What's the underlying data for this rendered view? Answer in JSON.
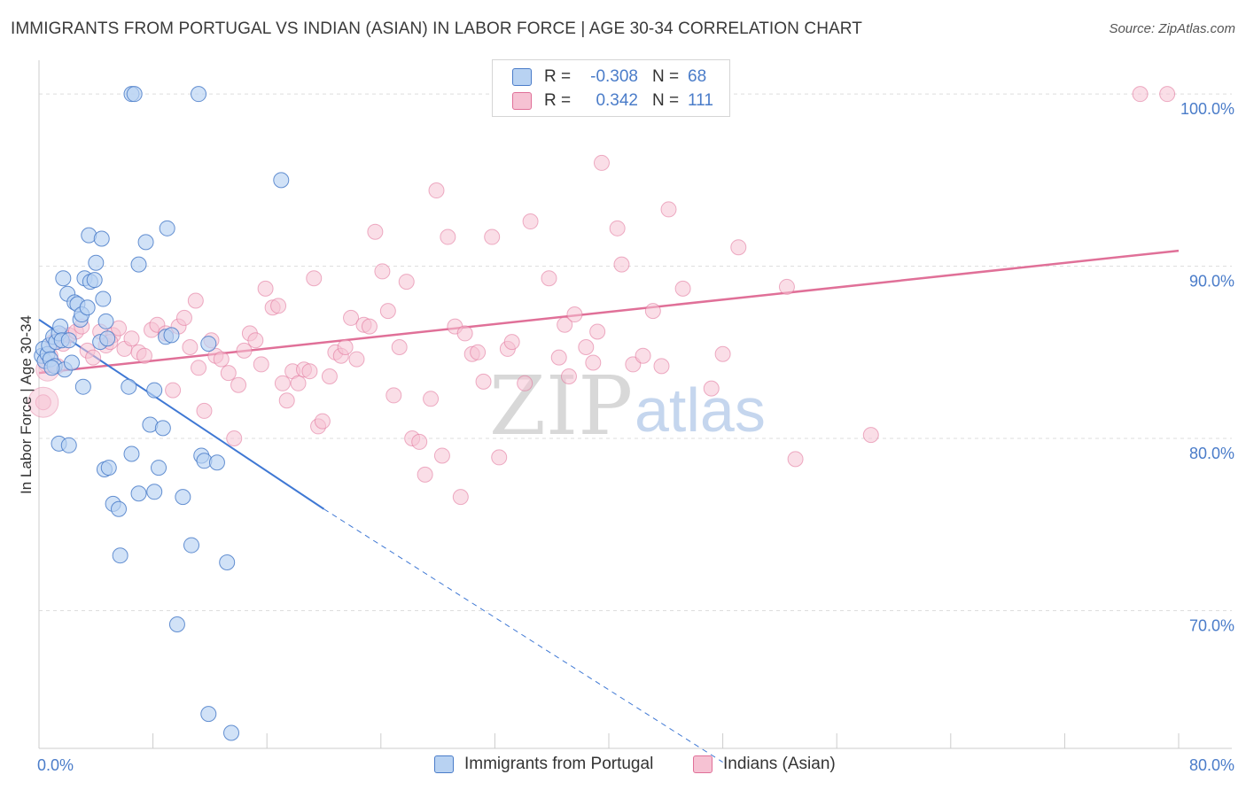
{
  "title": "IMMIGRANTS FROM PORTUGAL VS INDIAN (ASIAN) IN LABOR FORCE | AGE 30-34 CORRELATION CHART",
  "source": "Source: ZipAtlas.com",
  "watermark": {
    "zip": "ZIP",
    "atlas": "atlas"
  },
  "colors": {
    "blue": "#4a7cc9",
    "blue_fill": "#b8d2f2",
    "pink": "#e07098",
    "pink_fill": "#f6c2d3",
    "grid": "#dddddd"
  },
  "legend": {
    "rows": [
      {
        "r_label": "R =",
        "r_value": "-0.308",
        "n_label": "N =",
        "n_value": "68"
      },
      {
        "r_label": "R =",
        "r_value": "0.342",
        "n_label": "N =",
        "n_value": "111"
      }
    ]
  },
  "bottom_legend": [
    {
      "label": "Immigrants from Portugal"
    },
    {
      "label": "Indians (Asian)"
    }
  ],
  "chart_data": {
    "type": "scatter",
    "title": "IMMIGRANTS FROM PORTUGAL VS INDIAN (ASIAN) IN LABOR FORCE | AGE 30-34 CORRELATION CHART",
    "xlabel": "",
    "ylabel": "In Labor Force | Age 30-34",
    "xlim": [
      0,
      80
    ],
    "ylim": [
      62,
      101.5
    ],
    "x_tick_labels": [
      {
        "value": 0,
        "label": "0.0%"
      },
      {
        "value": 80,
        "label": "80.0%"
      }
    ],
    "y_tick_labels": [
      {
        "value": 70,
        "label": "70.0%"
      },
      {
        "value": 80,
        "label": "80.0%"
      },
      {
        "value": 90,
        "label": "90.0%"
      },
      {
        "value": 100,
        "label": "100.0%"
      }
    ],
    "series": [
      {
        "name": "Immigrants from Portugal",
        "color": "#4a7cc9",
        "trend": {
          "x": [
            0,
            20
          ],
          "y": [
            86.9,
            75.9
          ],
          "dashed_to": [
            48,
            61.2
          ]
        },
        "points": [
          [
            0.2,
            84.8
          ],
          [
            0.3,
            85.2
          ],
          [
            0.4,
            84.5
          ],
          [
            0.6,
            84.9
          ],
          [
            0.7,
            85.4
          ],
          [
            0.8,
            84.6
          ],
          [
            1.0,
            85.9
          ],
          [
            1.1,
            84.2
          ],
          [
            1.2,
            85.6
          ],
          [
            1.4,
            86.1
          ],
          [
            1.5,
            86.5
          ],
          [
            1.6,
            85.7
          ],
          [
            1.8,
            84.0
          ],
          [
            2.3,
            84.4
          ],
          [
            1.7,
            89.3
          ],
          [
            2.0,
            88.4
          ],
          [
            2.5,
            87.9
          ],
          [
            2.7,
            87.8
          ],
          [
            2.9,
            86.9
          ],
          [
            3.0,
            87.2
          ],
          [
            3.2,
            89.3
          ],
          [
            3.4,
            87.6
          ],
          [
            3.6,
            89.1
          ],
          [
            3.9,
            89.2
          ],
          [
            4.0,
            90.2
          ],
          [
            4.3,
            85.6
          ],
          [
            4.5,
            88.1
          ],
          [
            4.7,
            86.8
          ],
          [
            3.5,
            91.8
          ],
          [
            4.4,
            91.6
          ],
          [
            6.5,
            100
          ],
          [
            6.7,
            100
          ],
          [
            11.2,
            100
          ],
          [
            7.0,
            90.1
          ],
          [
            7.5,
            91.4
          ],
          [
            9.0,
            92.2
          ],
          [
            17.0,
            95.0
          ],
          [
            1.4,
            79.7
          ],
          [
            2.1,
            79.6
          ],
          [
            3.1,
            83.0
          ],
          [
            6.3,
            83.0
          ],
          [
            8.1,
            82.8
          ],
          [
            7.8,
            80.8
          ],
          [
            8.7,
            80.6
          ],
          [
            11.4,
            79.0
          ],
          [
            11.6,
            78.7
          ],
          [
            12.5,
            78.6
          ],
          [
            6.5,
            79.1
          ],
          [
            4.6,
            78.2
          ],
          [
            4.9,
            78.3
          ],
          [
            8.4,
            78.3
          ],
          [
            7.0,
            76.8
          ],
          [
            8.1,
            76.9
          ],
          [
            10.1,
            76.6
          ],
          [
            5.2,
            76.2
          ],
          [
            5.6,
            75.9
          ],
          [
            10.7,
            73.8
          ],
          [
            5.7,
            73.2
          ],
          [
            13.2,
            72.8
          ],
          [
            9.7,
            69.2
          ],
          [
            11.9,
            64.0
          ],
          [
            13.5,
            62.9
          ],
          [
            4.8,
            85.8
          ],
          [
            8.9,
            85.9
          ],
          [
            9.3,
            86.0
          ],
          [
            11.9,
            85.5
          ],
          [
            0.9,
            84.1
          ],
          [
            2.1,
            85.7
          ]
        ]
      },
      {
        "name": "Indians (Asian)",
        "color": "#e07098",
        "trend": {
          "x": [
            0,
            80
          ],
          "y": [
            83.8,
            90.9
          ]
        },
        "points": [
          [
            0.3,
            82.1
          ],
          [
            0.5,
            84.3
          ],
          [
            0.8,
            84.8
          ],
          [
            1.0,
            85.6
          ],
          [
            1.3,
            84.2
          ],
          [
            1.7,
            85.5
          ],
          [
            2.1,
            86.0
          ],
          [
            2.6,
            86.2
          ],
          [
            3.0,
            86.5
          ],
          [
            3.4,
            85.1
          ],
          [
            3.8,
            84.7
          ],
          [
            4.3,
            86.2
          ],
          [
            4.7,
            85.4
          ],
          [
            5.2,
            86.0
          ],
          [
            5.6,
            86.4
          ],
          [
            6.0,
            85.2
          ],
          [
            6.5,
            85.8
          ],
          [
            7.0,
            85.0
          ],
          [
            7.4,
            84.8
          ],
          [
            7.9,
            86.3
          ],
          [
            8.3,
            86.6
          ],
          [
            8.9,
            86.1
          ],
          [
            9.4,
            82.8
          ],
          [
            9.8,
            86.5
          ],
          [
            10.2,
            87.0
          ],
          [
            10.6,
            85.3
          ],
          [
            11.0,
            88.0
          ],
          [
            11.2,
            84.1
          ],
          [
            11.6,
            81.6
          ],
          [
            12.1,
            85.7
          ],
          [
            12.4,
            84.8
          ],
          [
            12.8,
            84.6
          ],
          [
            13.3,
            83.8
          ],
          [
            13.7,
            80.0
          ],
          [
            14.0,
            83.1
          ],
          [
            14.4,
            85.1
          ],
          [
            14.8,
            86.1
          ],
          [
            15.2,
            85.7
          ],
          [
            15.6,
            84.3
          ],
          [
            15.9,
            88.7
          ],
          [
            16.4,
            87.6
          ],
          [
            16.8,
            87.7
          ],
          [
            17.1,
            83.2
          ],
          [
            17.4,
            82.2
          ],
          [
            17.8,
            83.9
          ],
          [
            18.2,
            83.2
          ],
          [
            18.6,
            84.0
          ],
          [
            19.0,
            83.9
          ],
          [
            19.3,
            89.3
          ],
          [
            19.6,
            80.7
          ],
          [
            19.9,
            81.0
          ],
          [
            20.4,
            83.6
          ],
          [
            20.8,
            85.0
          ],
          [
            21.2,
            84.8
          ],
          [
            21.5,
            85.3
          ],
          [
            21.9,
            87.0
          ],
          [
            22.3,
            84.6
          ],
          [
            22.8,
            86.6
          ],
          [
            23.2,
            86.5
          ],
          [
            23.6,
            92.0
          ],
          [
            24.1,
            89.7
          ],
          [
            24.5,
            87.4
          ],
          [
            24.9,
            82.5
          ],
          [
            25.3,
            85.3
          ],
          [
            25.8,
            89.1
          ],
          [
            26.2,
            80.0
          ],
          [
            26.7,
            79.8
          ],
          [
            27.1,
            77.9
          ],
          [
            27.5,
            82.3
          ],
          [
            27.9,
            94.4
          ],
          [
            28.3,
            79.0
          ],
          [
            28.7,
            91.7
          ],
          [
            29.2,
            86.5
          ],
          [
            29.6,
            76.6
          ],
          [
            29.9,
            86.1
          ],
          [
            30.4,
            84.9
          ],
          [
            30.8,
            85.0
          ],
          [
            31.2,
            83.3
          ],
          [
            31.8,
            91.7
          ],
          [
            32.3,
            78.9
          ],
          [
            32.9,
            85.2
          ],
          [
            33.2,
            85.6
          ],
          [
            34.1,
            83.2
          ],
          [
            34.5,
            92.6
          ],
          [
            35.8,
            89.3
          ],
          [
            36.5,
            84.7
          ],
          [
            36.9,
            86.6
          ],
          [
            37.2,
            83.6
          ],
          [
            37.6,
            87.2
          ],
          [
            38.4,
            85.3
          ],
          [
            38.9,
            84.4
          ],
          [
            39.2,
            86.2
          ],
          [
            39.5,
            96.0
          ],
          [
            40.6,
            92.2
          ],
          [
            40.9,
            90.1
          ],
          [
            41.7,
            84.3
          ],
          [
            42.4,
            84.8
          ],
          [
            43.1,
            87.4
          ],
          [
            43.7,
            84.2
          ],
          [
            44.2,
            93.3
          ],
          [
            45.2,
            88.7
          ],
          [
            47.2,
            82.9
          ],
          [
            48.0,
            84.9
          ],
          [
            49.1,
            91.1
          ],
          [
            52.5,
            88.8
          ],
          [
            53.1,
            78.8
          ],
          [
            58.4,
            80.2
          ],
          [
            77.3,
            100
          ],
          [
            79.2,
            100
          ],
          [
            1.6,
            86.0
          ],
          [
            5.0,
            85.6
          ]
        ]
      }
    ]
  }
}
